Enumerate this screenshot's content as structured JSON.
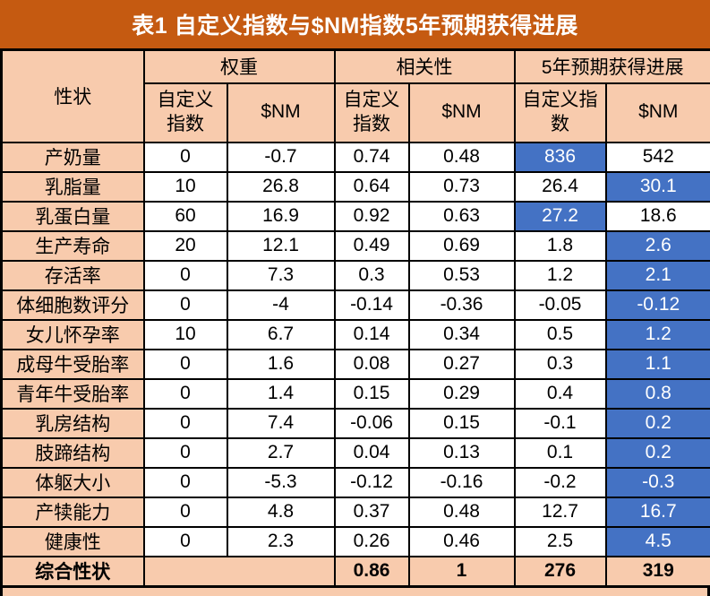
{
  "title": "表1 自定义指数与$NM指数5年预期获得进展",
  "colors": {
    "title_bg": "#C55A11",
    "title_text": "#FFFFFF",
    "header_bg": "#F8CBAD",
    "highlight_bg": "#4472C4",
    "highlight_text": "#FFFFFF",
    "border": "#000000",
    "cell_bg": "#FFFFFF"
  },
  "table": {
    "trait_header": "性状",
    "groups": [
      {
        "label": "权重",
        "sub": [
          "自定义\n指数",
          "$NM"
        ]
      },
      {
        "label": "相关性",
        "sub": [
          "自定义\n指数",
          "$NM"
        ]
      },
      {
        "label": "5年预期获得进展",
        "sub": [
          "自定义指\n数",
          "$NM"
        ]
      }
    ],
    "rows": [
      {
        "trait": "产奶量",
        "cells": [
          "0",
          "-0.7",
          "0.74",
          "0.48",
          "836",
          "542"
        ],
        "blue": [
          4
        ]
      },
      {
        "trait": "乳脂量",
        "cells": [
          "10",
          "26.8",
          "0.64",
          "0.73",
          "26.4",
          "30.1"
        ],
        "blue": [
          5
        ]
      },
      {
        "trait": "乳蛋白量",
        "cells": [
          "60",
          "16.9",
          "0.92",
          "0.63",
          "27.2",
          "18.6"
        ],
        "blue": [
          4
        ]
      },
      {
        "trait": "生产寿命",
        "cells": [
          "20",
          "12.1",
          "0.49",
          "0.69",
          "1.8",
          "2.6"
        ],
        "blue": [
          5
        ]
      },
      {
        "trait": "存活率",
        "cells": [
          "0",
          "7.3",
          "0.3",
          "0.53",
          "1.2",
          "2.1"
        ],
        "blue": [
          5
        ]
      },
      {
        "trait": "体细胞数评分",
        "cells": [
          "0",
          "-4",
          "-0.14",
          "-0.36",
          "-0.05",
          "-0.12"
        ],
        "blue": [
          5
        ]
      },
      {
        "trait": "女儿怀孕率",
        "cells": [
          "10",
          "6.7",
          "0.14",
          "0.34",
          "0.5",
          "1.2"
        ],
        "blue": [
          5
        ]
      },
      {
        "trait": "成母牛受胎率",
        "cells": [
          "0",
          "1.6",
          "0.08",
          "0.27",
          "0.3",
          "1.1"
        ],
        "blue": [
          5
        ]
      },
      {
        "trait": "青年牛受胎率",
        "cells": [
          "0",
          "1.4",
          "0.15",
          "0.29",
          "0.4",
          "0.8"
        ],
        "blue": [
          5
        ]
      },
      {
        "trait": "乳房结构",
        "cells": [
          "0",
          "7.4",
          "-0.06",
          "0.15",
          "-0.1",
          "0.2"
        ],
        "blue": [
          5
        ]
      },
      {
        "trait": "肢蹄结构",
        "cells": [
          "0",
          "2.7",
          "0.04",
          "0.13",
          "0.1",
          "0.2"
        ],
        "blue": [
          5
        ]
      },
      {
        "trait": "体躯大小",
        "cells": [
          "0",
          "-5.3",
          "-0.12",
          "-0.16",
          "-0.2",
          "-0.3"
        ],
        "blue": [
          5
        ]
      },
      {
        "trait": "产犊能力",
        "cells": [
          "0",
          "4.8",
          "0.37",
          "0.48",
          "12.7",
          "16.7"
        ],
        "blue": [
          5
        ]
      },
      {
        "trait": "健康性",
        "cells": [
          "0",
          "2.3",
          "0.26",
          "0.46",
          "2.5",
          "4.5"
        ],
        "blue": [
          5
        ]
      }
    ],
    "total_row": {
      "trait": "综合性状",
      "cells": [
        {
          "text": "",
          "span": 2
        },
        {
          "text": "0.86",
          "span": 1
        },
        {
          "text": "1",
          "span": 1
        },
        {
          "text": "276",
          "span": 1
        },
        {
          "text": "319",
          "span": 1
        }
      ]
    }
  }
}
